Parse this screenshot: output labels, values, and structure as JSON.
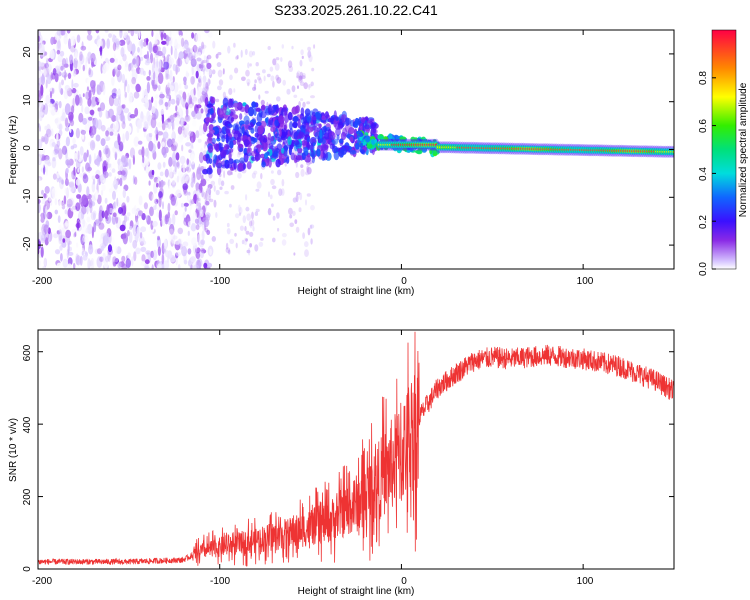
{
  "title": "S233.2025.261.10.22.C41",
  "top_panel": {
    "xlabel": "Height of straight line (km)",
    "ylabel": "Frequency (Hz)",
    "colorbar_label": "Normalized spectral amplitude",
    "x_ticks": [
      "-200",
      "-100",
      "0",
      "100"
    ],
    "y_ticks": [
      "20",
      "10",
      "0",
      "-10",
      "-20"
    ],
    "colorbar_ticks": [
      "0.0",
      "0.2",
      "0.4",
      "0.6",
      "0.8"
    ]
  },
  "bottom_panel": {
    "xlabel": "Height of straight line (km)",
    "ylabel": "SNR (10 * v/v)",
    "x_ticks": [
      "-200",
      "-100",
      "0",
      "100"
    ],
    "y_ticks": [
      "0",
      "200",
      "400",
      "600"
    ]
  },
  "chart_data": [
    {
      "type": "heatmap",
      "title": "S233.2025.261.10.22.C41",
      "xlabel": "Height of straight line (km)",
      "ylabel": "Frequency (Hz)",
      "xlim": [
        -200,
        150
      ],
      "ylim": [
        -25,
        25
      ],
      "colorbar": {
        "label": "Normalized spectral amplitude",
        "range": [
          0,
          1
        ],
        "ticks": [
          0.0,
          0.2,
          0.4,
          0.6,
          0.8
        ]
      },
      "features": [
        {
          "region": "noise",
          "x_range": [
            -200,
            -115
          ],
          "freq_range": [
            -25,
            25
          ],
          "amplitude": [
            0.0,
            0.15
          ]
        },
        {
          "region": "scattered",
          "x_range": [
            -110,
            -20
          ],
          "freq_range": [
            -5,
            10
          ],
          "amplitude": [
            0.1,
            0.35
          ]
        },
        {
          "region": "transition",
          "x_range": [
            -20,
            20
          ],
          "freq_center": [
            3,
            1
          ],
          "amplitude": [
            0.3,
            0.9
          ]
        },
        {
          "region": "tone",
          "x_range": [
            20,
            150
          ],
          "freq_center": [
            0.5,
            -0.5
          ],
          "amplitude": [
            0.45,
            0.95
          ]
        }
      ]
    },
    {
      "type": "line",
      "title": "",
      "xlabel": "Height of straight line (km)",
      "ylabel": "SNR (10 * v/v)",
      "xlim": [
        -200,
        150
      ],
      "ylim": [
        0,
        660
      ],
      "color": "#ee3333",
      "series": [
        {
          "name": "SNR",
          "x": [
            -200,
            -150,
            -120,
            -110,
            -100,
            -80,
            -60,
            -40,
            -25,
            -20,
            -10,
            0,
            10,
            20,
            30,
            40,
            50,
            60,
            80,
            100,
            120,
            140,
            150
          ],
          "y": [
            20,
            20,
            25,
            50,
            60,
            80,
            100,
            130,
            180,
            200,
            260,
            320,
            420,
            500,
            540,
            575,
            585,
            580,
            590,
            580,
            560,
            520,
            490
          ]
        }
      ]
    }
  ]
}
